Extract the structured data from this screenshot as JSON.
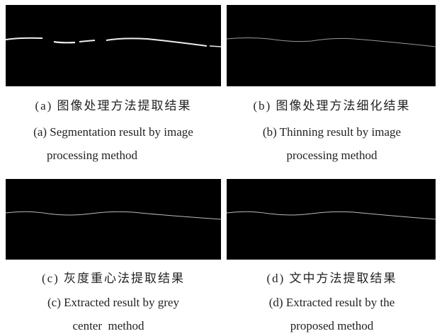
{
  "panels": [
    {
      "caption_cn": "(a) 图像处理方法提取结果",
      "caption_en": [
        "(a) Segmentation result by image",
        "processing method"
      ]
    },
    {
      "caption_cn": "(b) 图像处理方法细化结果",
      "caption_en": [
        "(b) Thinning result by image",
        "processing method"
      ]
    },
    {
      "caption_cn": "(c) 灰度重心法提取结果",
      "caption_en": [
        "(c) Extracted result by grey",
        "center  method"
      ]
    },
    {
      "caption_cn": "(d) 文中方法提取结果",
      "caption_en": [
        "(d) Extracted result by the",
        "proposed method"
      ]
    }
  ]
}
